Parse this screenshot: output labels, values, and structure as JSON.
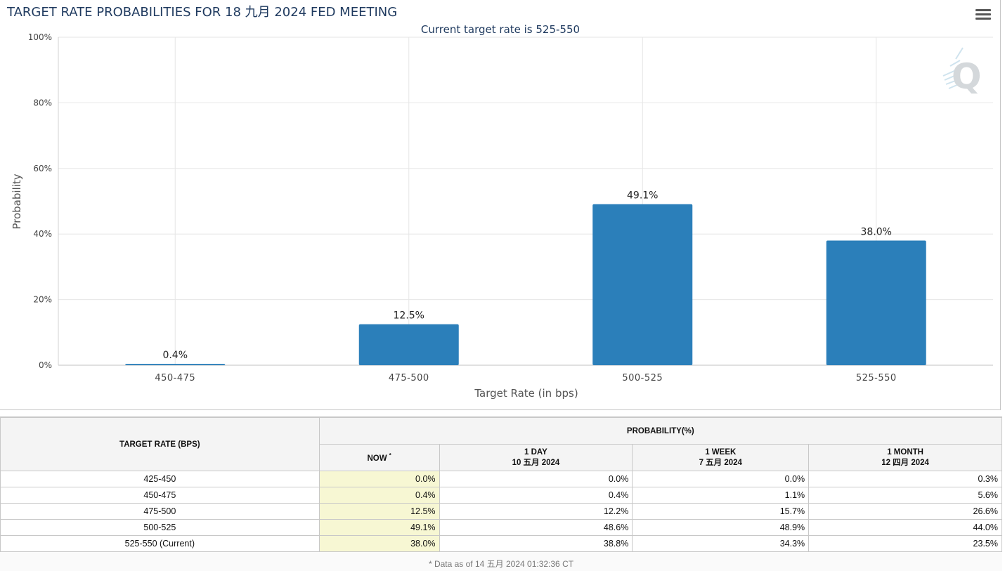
{
  "chart_title": "TARGET RATE PROBABILITIES FOR 18 九月 2024 FED MEETING",
  "chart_data": {
    "type": "bar",
    "title": "TARGET RATE PROBABILITIES FOR 18 九月 2024 FED MEETING",
    "subtitle": "Current target rate is 525-550",
    "xlabel": "Target Rate (in bps)",
    "ylabel": "Probability",
    "categories": [
      "450-475",
      "475-500",
      "500-525",
      "525-550"
    ],
    "values": [
      0.4,
      12.5,
      49.1,
      38.0
    ],
    "data_labels": [
      "0.4%",
      "12.5%",
      "49.1%",
      "38.0%"
    ],
    "ylim": [
      0,
      100
    ],
    "yticks": [
      "0%",
      "20%",
      "40%",
      "60%",
      "80%",
      "100%"
    ],
    "grid": true,
    "bar_color": "#2b7fba"
  },
  "table": {
    "col_rate": "TARGET RATE (BPS)",
    "col_prob": "PROBABILITY(%)",
    "now_label": "NOW",
    "now_marker": "*",
    "day_label": "1 DAY",
    "day_date": "10 五月 2024",
    "week_label": "1 WEEK",
    "week_date": "7 五月 2024",
    "month_label": "1 MONTH",
    "month_date": "12 四月 2024",
    "rows": [
      {
        "rate": "425-450",
        "now": "0.0%",
        "day": "0.0%",
        "week": "0.0%",
        "month": "0.3%"
      },
      {
        "rate": "450-475",
        "now": "0.4%",
        "day": "0.4%",
        "week": "1.1%",
        "month": "5.6%"
      },
      {
        "rate": "475-500",
        "now": "12.5%",
        "day": "12.2%",
        "week": "15.7%",
        "month": "26.6%"
      },
      {
        "rate": "500-525",
        "now": "49.1%",
        "day": "48.6%",
        "week": "48.9%",
        "month": "44.0%"
      },
      {
        "rate": "525-550 (Current)",
        "now": "38.0%",
        "day": "38.8%",
        "week": "34.3%",
        "month": "23.5%"
      }
    ],
    "footnote": "* Data as of 14 五月 2024 01:32:36 CT"
  },
  "icons": {
    "menu": "hamburger-menu-icon",
    "watermark": "quikstrike-logo-icon"
  }
}
